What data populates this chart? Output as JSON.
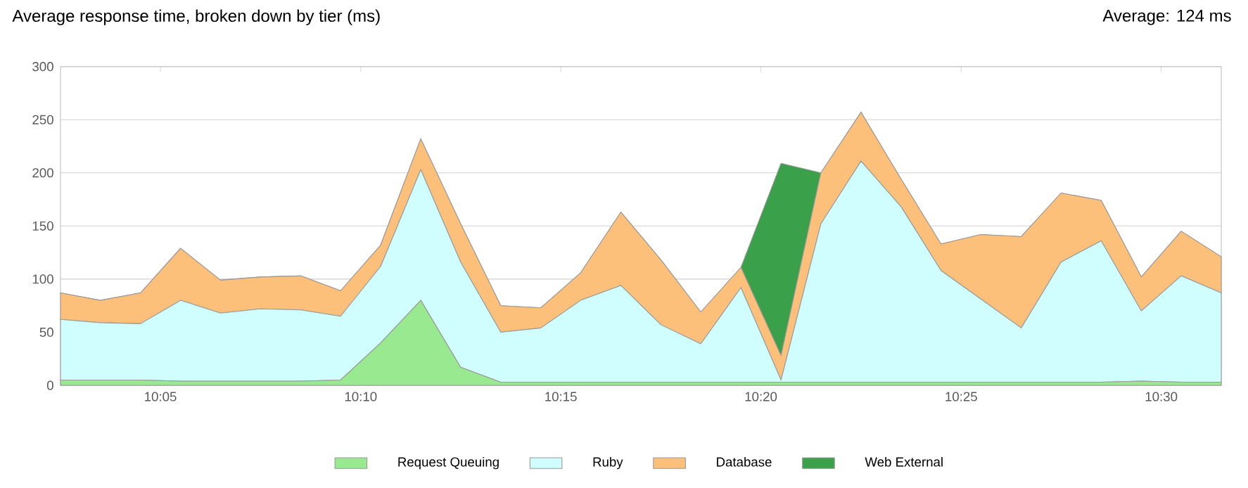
{
  "chart_data": {
    "type": "area",
    "stacked": true,
    "title": "Average response time, broken down by tier (ms)",
    "annotations": [
      "Average: 124 ms"
    ],
    "x": [
      10.0417,
      10.0583,
      10.075,
      10.0917,
      10.1083,
      10.125,
      10.1417,
      10.1583,
      10.175,
      10.1917,
      10.2083,
      10.225,
      10.2417,
      10.2583,
      10.275,
      10.2917,
      10.3083,
      10.325,
      10.3417,
      10.3583,
      10.375,
      10.3917,
      10.4083,
      10.425,
      10.4417,
      10.4583,
      10.475,
      10.4917,
      10.5083,
      10.525
    ],
    "series": [
      {
        "name": "Request Queuing",
        "color": "#98e98f",
        "values": [
          5,
          5,
          5,
          4,
          4,
          4,
          4,
          5,
          40,
          80,
          17,
          3,
          3,
          3,
          3,
          3,
          3,
          3,
          3,
          3,
          3,
          3,
          3,
          3,
          3,
          3,
          3,
          4,
          3,
          3
        ]
      },
      {
        "name": "Ruby",
        "color": "#d0fdfd",
        "values": [
          57,
          54,
          53,
          76,
          64,
          68,
          67,
          60,
          72,
          123,
          99,
          47,
          51,
          77,
          91,
          54,
          36,
          89,
          2,
          149,
          208,
          165,
          105,
          78,
          51,
          113,
          133,
          66,
          100,
          84
        ]
      },
      {
        "name": "Database",
        "color": "#fdc07a",
        "values": [
          25,
          21,
          29,
          49,
          31,
          30,
          32,
          24,
          20,
          29,
          36,
          25,
          19,
          26,
          69,
          61,
          30,
          19,
          23,
          48,
          46,
          26,
          25,
          61,
          86,
          65,
          38,
          32,
          42,
          34
        ]
      },
      {
        "name": "Web External",
        "color": "#3aa14a",
        "values": [
          0,
          0,
          0,
          0,
          0,
          0,
          0,
          0,
          0,
          0,
          0,
          0,
          0,
          0,
          0,
          0,
          0,
          0,
          181,
          0,
          0,
          0,
          0,
          0,
          0,
          0,
          0,
          0,
          0,
          0
        ]
      }
    ],
    "xlim": [
      10.0417,
      10.525
    ],
    "xticks": [
      {
        "value": 10.0833,
        "label": "10:05"
      },
      {
        "value": 10.1667,
        "label": "10:10"
      },
      {
        "value": 10.25,
        "label": "10:15"
      },
      {
        "value": 10.3333,
        "label": "10:20"
      },
      {
        "value": 10.4167,
        "label": "10:25"
      },
      {
        "value": 10.5,
        "label": "10:30"
      }
    ],
    "ylim": [
      0,
      300
    ],
    "yticks": [
      0,
      50,
      100,
      150,
      200,
      250,
      300
    ],
    "grid": "y",
    "legend": "bottom"
  }
}
